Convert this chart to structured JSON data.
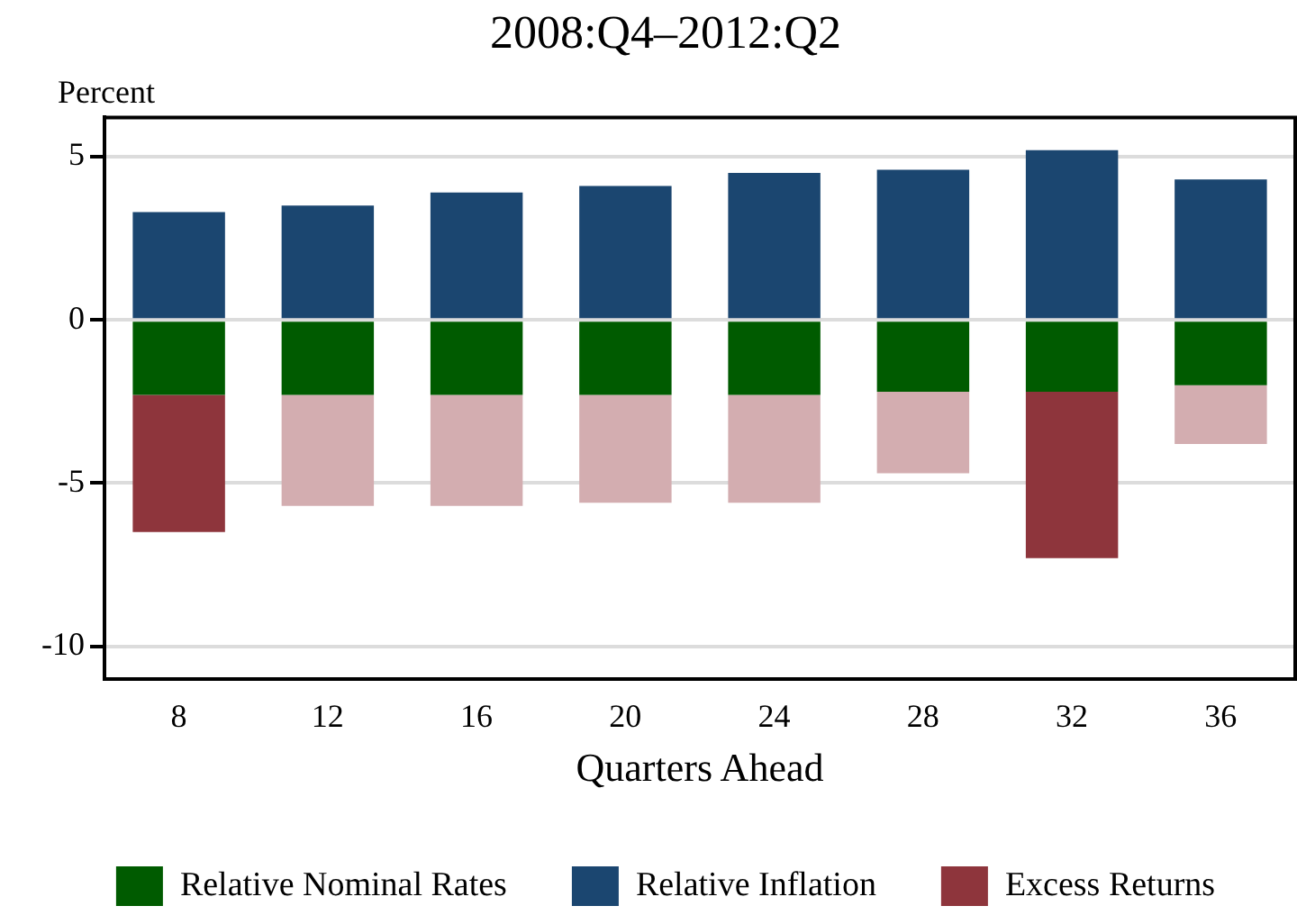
{
  "chart_data": {
    "type": "bar",
    "title": "2008:Q4–2012:Q2",
    "xlabel": "Quarters Ahead",
    "ylabel": "Percent",
    "categories": [
      "8",
      "12",
      "16",
      "20",
      "24",
      "28",
      "32",
      "36"
    ],
    "stacked": true,
    "ylim": [
      -11,
      6.2
    ],
    "yticks": [
      -10,
      -5,
      0,
      5
    ],
    "grid": "y",
    "legend": "bottom",
    "series": [
      {
        "name": "Relative Nominal Rates",
        "color": "#005b00",
        "values": [
          -2.3,
          -2.3,
          -2.3,
          -2.3,
          -2.3,
          -2.2,
          -2.2,
          -2.0
        ]
      },
      {
        "name": "Relative Inflation",
        "color": "#1b4670",
        "values": [
          3.3,
          3.5,
          3.9,
          4.1,
          4.5,
          4.6,
          5.2,
          4.3
        ]
      },
      {
        "name": "Excess Returns",
        "color": "#8e353c",
        "colors": [
          "#8e353c",
          "#d3adb0",
          "#d3adb0",
          "#d3adb0",
          "#d3adb0",
          "#d3adb0",
          "#8e353c",
          "#d3adb0"
        ],
        "values": [
          -4.2,
          -3.4,
          -3.4,
          -3.3,
          -3.3,
          -2.5,
          -5.1,
          -1.8
        ]
      }
    ]
  }
}
